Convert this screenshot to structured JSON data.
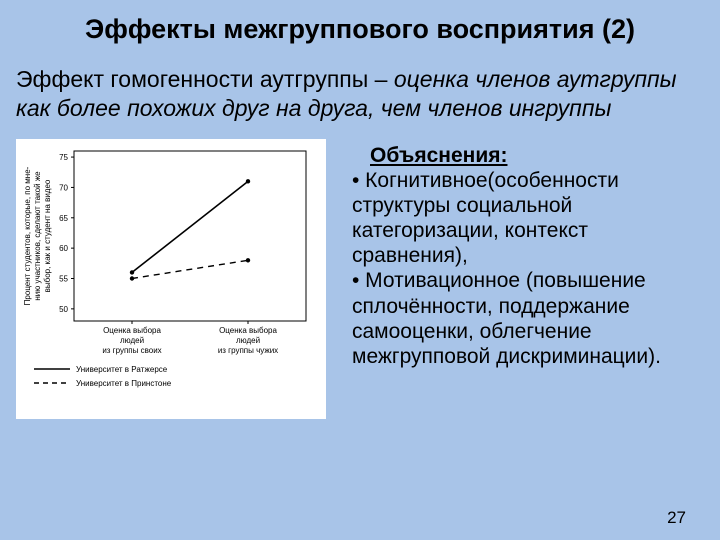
{
  "title": "Эффекты межгруппового восприятия (2)",
  "subtitle": {
    "lead": "Эффект гомогенности аутгруппы",
    "dash": " – ",
    "rest": "оценка членов аутгруппы как более похожих друг на друга, чем членов ингруппы"
  },
  "explain": {
    "heading": "Объяснения",
    "colon": ":",
    "bullet1_lead": "• Когнитивное",
    "bullet1_rest": "(особенности структуры социальной категоризации, контекст сравнения),",
    "bullet2_lead": "• Мотивационное ",
    "bullet2_rest": "(повышение сплочённости, поддержание самооценки, облегчение межгрупповой дискриминации)."
  },
  "page_number": "27",
  "chart": {
    "type": "line",
    "background": "#ffffff",
    "axis_color": "#000000",
    "ylabel": "Процент студентов, которые, по мне-\nнию участников, сделают такой же\nвыбор, как и студент на видео",
    "ylabel_fontsize": 8,
    "ylim": [
      48,
      76
    ],
    "ytick_values": [
      50,
      55,
      60,
      65,
      70,
      75
    ],
    "ytick_labels": [
      "50",
      "55",
      "60",
      "65",
      "70",
      "75"
    ],
    "tick_fontsize": 8,
    "xcats": [
      "Оценка выбора\nлюдей\nиз группы своих",
      "Оценка выбора\nлюдей\nиз группы чужих"
    ],
    "series": [
      {
        "name": "Университет в Ратжерсе",
        "dash": "solid",
        "color": "#000000",
        "width": 1.6,
        "values": [
          56,
          71
        ]
      },
      {
        "name": "Университет в Принстоне",
        "dash": "dashed",
        "color": "#000000",
        "width": 1.4,
        "values": [
          55,
          58
        ]
      }
    ],
    "legend_fontsize": 8
  }
}
